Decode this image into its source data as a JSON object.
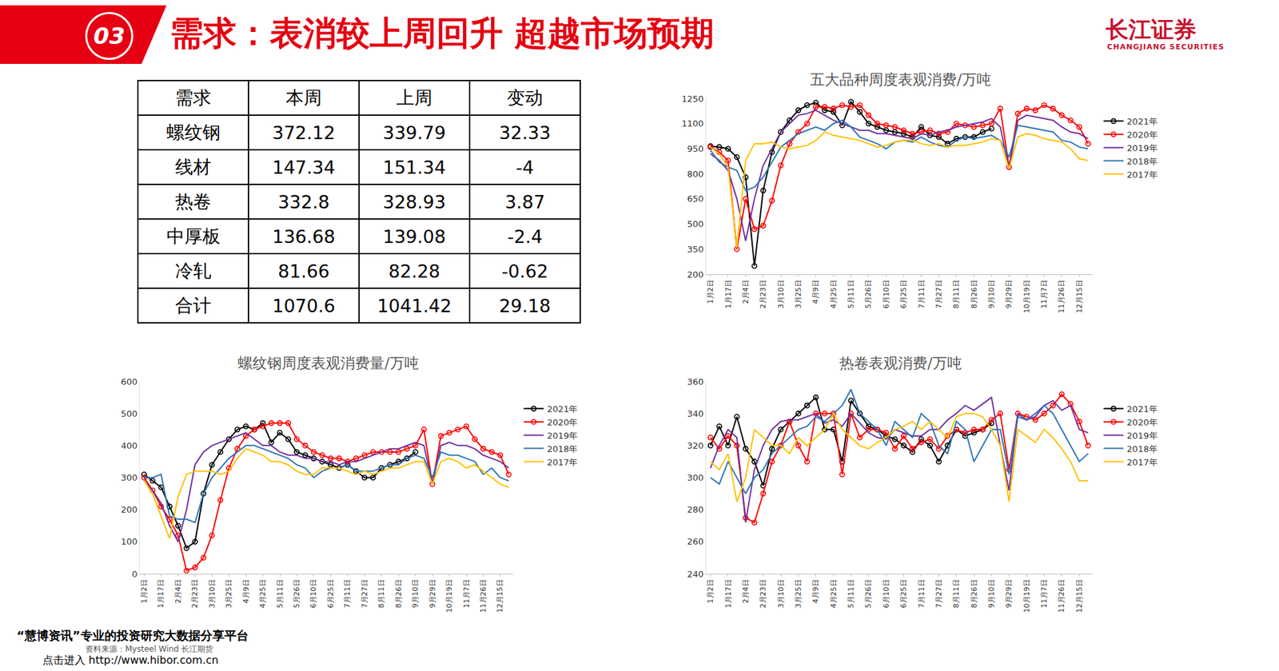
{
  "header": {
    "number": "03",
    "title": "需求：表消较上周回升 超越市场预期",
    "logo": "长江证券",
    "logo_en": "CHANGJIANG SECURITIES"
  },
  "table": {
    "header": [
      "需求",
      "本周",
      "上周",
      "变动"
    ],
    "rows": [
      [
        "螺纹钢",
        "372.12",
        "339.79",
        "32.33"
      ],
      [
        "线材",
        "147.34",
        "151.34",
        "-4"
      ],
      [
        "热卷",
        "332.8",
        "328.93",
        "3.87"
      ],
      [
        "中厚板",
        "136.68",
        "139.08",
        "-2.4"
      ],
      [
        "冷轧",
        "81.66",
        "82.28",
        "-0.62"
      ],
      [
        "合计",
        "1070.6",
        "1041.42",
        "29.18"
      ]
    ]
  },
  "footer": {
    "platform": "“慧博资讯”专业的投资研究大数据分享平台",
    "source": "资料来源：Mysteel Wind 长江期货",
    "link": "点击进入 http://www.hibor.com.cn"
  },
  "chart_data": [
    {
      "type": "line",
      "title": "五大品种周度表观消费/万吨",
      "categories": [
        "1月2日",
        null,
        "1月17日",
        null,
        "2月4日",
        null,
        "2月23日",
        null,
        "3月10日",
        null,
        "3月25日",
        null,
        "4月9日",
        null,
        "4月25日",
        null,
        "5月11日",
        null,
        "5月26日",
        null,
        "6月10日",
        null,
        "6月25日",
        null,
        "7月11日",
        null,
        "7月27日",
        null,
        "8月11日",
        null,
        "8月26日",
        null,
        "9月10日",
        null,
        "9月29日",
        null,
        "10月19日",
        null,
        "11月7日",
        null,
        "11月26日",
        null,
        "12月15日",
        null
      ],
      "ylim": [
        200,
        1250
      ],
      "yticks": [
        200,
        350,
        500,
        650,
        800,
        950,
        1100,
        1250
      ],
      "grid": false,
      "legend": "right",
      "series": [
        {
          "name": "2021年",
          "color": "#000000",
          "marker": "circle",
          "values": [
            965,
            960,
            950,
            900,
            780,
            250,
            700,
            930,
            1050,
            1120,
            1180,
            1210,
            1225,
            1180,
            1170,
            1090,
            1230,
            1170,
            1100,
            1080,
            1060,
            1050,
            1040,
            1020,
            1080,
            1030,
            1020,
            980,
            1010,
            1020,
            1020,
            1050,
            1070,
            null,
            null,
            null,
            null,
            null,
            null,
            null,
            null,
            null,
            null,
            null
          ]
        },
        {
          "name": "2020年",
          "color": "#ff0000",
          "marker": "circle",
          "values": [
            960,
            930,
            880,
            350,
            650,
            470,
            490,
            640,
            850,
            980,
            1050,
            1100,
            1200,
            1200,
            1190,
            1210,
            1200,
            1210,
            1150,
            1100,
            1090,
            1080,
            1060,
            1040,
            1050,
            1060,
            1040,
            1050,
            1100,
            1090,
            1080,
            1090,
            1100,
            1190,
            840,
            1160,
            1190,
            1180,
            1210,
            1190,
            1150,
            1120,
            1080,
            980
          ]
        },
        {
          "name": "2019年",
          "color": "#7030a0",
          "marker": "none",
          "values": [
            920,
            880,
            820,
            650,
            400,
            650,
            850,
            950,
            1050,
            1100,
            1150,
            1160,
            1180,
            1150,
            1120,
            1100,
            1080,
            1060,
            1060,
            1040,
            1040,
            1030,
            1020,
            1010,
            1040,
            1030,
            1050,
            1060,
            1080,
            1090,
            1100,
            1110,
            1130,
            1080,
            830,
            1120,
            1150,
            1140,
            1130,
            1120,
            1080,
            1050,
            1040,
            1010
          ]
        },
        {
          "name": "2018年",
          "color": "#2e75b6",
          "marker": "none",
          "values": [
            940,
            870,
            840,
            820,
            700,
            720,
            780,
            870,
            960,
            1000,
            1040,
            1060,
            1080,
            1060,
            1100,
            1120,
            1080,
            1020,
            1000,
            980,
            950,
            990,
            1000,
            990,
            1020,
            990,
            970,
            960,
            1000,
            1020,
            1010,
            1020,
            1030,
            1000,
            900,
            1090,
            1080,
            1070,
            1060,
            1050,
            1000,
            990,
            960,
            950
          ]
        },
        {
          "name": "2017年",
          "color": "#ffc000",
          "marker": "none",
          "values": [
            960,
            920,
            840,
            360,
            880,
            980,
            980,
            990,
            960,
            950,
            960,
            970,
            1000,
            1050,
            1030,
            1020,
            1010,
            1000,
            980,
            960,
            970,
            990,
            1000,
            1000,
            980,
            970,
            980,
            960,
            970,
            970,
            980,
            990,
            1010,
            1000,
            830,
            1020,
            1040,
            1030,
            1010,
            1000,
            990,
            950,
            890,
            880
          ]
        }
      ]
    },
    {
      "type": "line",
      "title": "螺纹钢周度表观消费量/万吨",
      "categories": [
        "1月2日",
        null,
        "1月17日",
        null,
        "2月4日",
        null,
        "2月23日",
        null,
        "3月10日",
        null,
        "3月25日",
        null,
        "4月9日",
        null,
        "4月25日",
        null,
        "5月11日",
        null,
        "5月26日",
        null,
        "6月10日",
        null,
        "6月25日",
        null,
        "7月11日",
        null,
        "7月27日",
        null,
        "8月11日",
        null,
        "8月26日",
        null,
        "9月10日",
        null,
        "9月29日",
        null,
        "10月19日",
        null,
        "11月7日",
        null,
        "11月26日",
        null,
        "12月15日",
        null
      ],
      "ylim": [
        0,
        600
      ],
      "yticks": [
        0,
        100,
        200,
        300,
        400,
        500,
        600
      ],
      "grid": false,
      "legend": "right",
      "series": [
        {
          "name": "2021年",
          "color": "#000000",
          "marker": "circle",
          "values": [
            310,
            290,
            270,
            210,
            150,
            80,
            100,
            250,
            340,
            380,
            420,
            450,
            460,
            450,
            470,
            410,
            440,
            420,
            380,
            370,
            360,
            350,
            340,
            330,
            340,
            320,
            300,
            300,
            330,
            340,
            350,
            360,
            380,
            null,
            null,
            null,
            null,
            null,
            null,
            null,
            null,
            null,
            null,
            null
          ]
        },
        {
          "name": "2020年",
          "color": "#ff0000",
          "marker": "circle",
          "values": [
            300,
            260,
            210,
            170,
            120,
            10,
            20,
            50,
            120,
            230,
            330,
            390,
            430,
            450,
            460,
            470,
            470,
            470,
            420,
            400,
            380,
            370,
            360,
            360,
            350,
            360,
            370,
            380,
            380,
            380,
            380,
            390,
            400,
            450,
            280,
            430,
            440,
            450,
            460,
            420,
            390,
            380,
            370,
            310
          ]
        },
        {
          "name": "2019年",
          "color": "#7030a0",
          "marker": "none",
          "values": [
            290,
            260,
            220,
            150,
            100,
            200,
            340,
            380,
            400,
            410,
            420,
            430,
            440,
            420,
            400,
            400,
            380,
            370,
            370,
            360,
            360,
            350,
            350,
            340,
            350,
            350,
            360,
            370,
            380,
            390,
            390,
            400,
            410,
            400,
            280,
            400,
            410,
            400,
            400,
            390,
            370,
            360,
            350,
            330
          ]
        },
        {
          "name": "2018年",
          "color": "#2e75b6",
          "marker": "none",
          "values": [
            300,
            300,
            310,
            180,
            170,
            170,
            160,
            250,
            300,
            330,
            360,
            380,
            400,
            400,
            390,
            380,
            370,
            360,
            340,
            330,
            300,
            320,
            330,
            330,
            340,
            320,
            320,
            320,
            330,
            340,
            340,
            360,
            370,
            360,
            300,
            380,
            370,
            370,
            360,
            350,
            310,
            330,
            300,
            290
          ]
        },
        {
          "name": "2017年",
          "color": "#ffc000",
          "marker": "none",
          "values": [
            290,
            250,
            180,
            110,
            240,
            310,
            320,
            320,
            320,
            310,
            320,
            360,
            390,
            380,
            370,
            350,
            350,
            340,
            320,
            310,
            310,
            330,
            330,
            330,
            320,
            310,
            320,
            310,
            320,
            330,
            330,
            340,
            350,
            350,
            280,
            350,
            360,
            350,
            330,
            340,
            320,
            300,
            280,
            270
          ]
        }
      ]
    },
    {
      "type": "line",
      "title": "热卷表观消费/万吨",
      "categories": [
        "1月2日",
        null,
        "1月17日",
        null,
        "2月4日",
        null,
        "2月23日",
        null,
        "3月10日",
        null,
        "3月25日",
        null,
        "4月9日",
        null,
        "4月25日",
        null,
        "5月11日",
        null,
        "5月26日",
        null,
        "6月10日",
        null,
        "6月25日",
        null,
        "7月11日",
        null,
        "7月27日",
        null,
        "8月11日",
        null,
        "8月26日",
        null,
        "9月10日",
        null,
        "9月29日",
        null,
        "10月19日",
        null,
        "11月7日",
        null,
        "11月26日",
        null,
        "12月15日",
        null
      ],
      "ylim": [
        240,
        360
      ],
      "yticks": [
        240,
        260,
        280,
        300,
        320,
        340,
        360
      ],
      "grid": false,
      "legend": "right",
      "series": [
        {
          "name": "2021年",
          "color": "#000000",
          "marker": "circle",
          "values": [
            320,
            332,
            320,
            338,
            318,
            310,
            295,
            318,
            330,
            335,
            340,
            345,
            350,
            330,
            330,
            310,
            348,
            340,
            332,
            330,
            326,
            324,
            320,
            316,
            324,
            320,
            310,
            320,
            330,
            326,
            328,
            330,
            334,
            null,
            null,
            null,
            null,
            null,
            null,
            null,
            null,
            null,
            null,
            null
          ]
        },
        {
          "name": "2020年",
          "color": "#ff0000",
          "marker": "circle",
          "values": [
            325,
            318,
            326,
            320,
            275,
            272,
            290,
            310,
            320,
            335,
            320,
            310,
            340,
            340,
            340,
            302,
            340,
            325,
            330,
            330,
            328,
            318,
            326,
            318,
            322,
            324,
            318,
            326,
            330,
            328,
            330,
            330,
            336,
            340,
            305,
            340,
            338,
            336,
            340,
            345,
            352,
            346,
            335,
            320
          ]
        },
        {
          "name": "2019年",
          "color": "#7030a0",
          "marker": "none",
          "values": [
            306,
            320,
            330,
            325,
            272,
            305,
            320,
            330,
            335,
            336,
            336,
            338,
            340,
            334,
            336,
            332,
            340,
            334,
            328,
            325,
            324,
            330,
            328,
            326,
            326,
            330,
            330,
            336,
            340,
            345,
            342,
            346,
            350,
            320,
            292,
            340,
            336,
            338,
            345,
            348,
            342,
            345,
            330,
            328
          ]
        },
        {
          "name": "2018年",
          "color": "#2e75b6",
          "marker": "none",
          "values": [
            300,
            296,
            310,
            300,
            290,
            300,
            305,
            315,
            320,
            325,
            330,
            332,
            338,
            335,
            340,
            345,
            355,
            340,
            335,
            330,
            320,
            335,
            330,
            325,
            340,
            335,
            320,
            315,
            335,
            330,
            310,
            320,
            330,
            330,
            302,
            338,
            336,
            340,
            345,
            340,
            330,
            320,
            310,
            315
          ]
        },
        {
          "name": "2017年",
          "color": "#ffc000",
          "marker": "none",
          "values": [
            310,
            305,
            315,
            285,
            300,
            330,
            325,
            320,
            320,
            315,
            325,
            320,
            325,
            330,
            340,
            330,
            325,
            320,
            318,
            322,
            325,
            330,
            332,
            335,
            330,
            335,
            330,
            325,
            338,
            340,
            340,
            338,
            330,
            320,
            285,
            330,
            326,
            322,
            330,
            325,
            318,
            310,
            298,
            298
          ]
        }
      ]
    }
  ]
}
